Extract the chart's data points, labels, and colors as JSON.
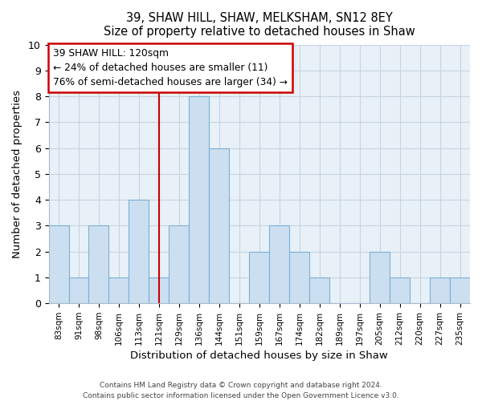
{
  "title1": "39, SHAW HILL, SHAW, MELKSHAM, SN12 8EY",
  "title2": "Size of property relative to detached houses in Shaw",
  "xlabel": "Distribution of detached houses by size in Shaw",
  "ylabel": "Number of detached properties",
  "categories": [
    "83sqm",
    "91sqm",
    "98sqm",
    "106sqm",
    "113sqm",
    "121sqm",
    "129sqm",
    "136sqm",
    "144sqm",
    "151sqm",
    "159sqm",
    "167sqm",
    "174sqm",
    "182sqm",
    "189sqm",
    "197sqm",
    "205sqm",
    "212sqm",
    "220sqm",
    "227sqm",
    "235sqm"
  ],
  "values": [
    3,
    1,
    3,
    1,
    4,
    1,
    3,
    8,
    6,
    0,
    2,
    3,
    2,
    1,
    0,
    0,
    2,
    1,
    0,
    1,
    1
  ],
  "bar_color": "#ccdff0",
  "bar_edgecolor": "#7ab0d4",
  "vline_x_index": 5,
  "vline_color": "#cc0000",
  "annotation_line1": "39 SHAW HILL: 120sqm",
  "annotation_line2": "← 24% of detached houses are smaller (11)",
  "annotation_line3": "76% of semi-detached houses are larger (34) →",
  "annotation_box_color": "#cc0000",
  "ylim": [
    0,
    10
  ],
  "yticks": [
    0,
    1,
    2,
    3,
    4,
    5,
    6,
    7,
    8,
    9,
    10
  ],
  "grid_color": "#c8d4e0",
  "bg_color": "#e8f0f8",
  "footer1": "Contains HM Land Registry data © Crown copyright and database right 2024.",
  "footer2": "Contains public sector information licensed under the Open Government Licence v3.0."
}
